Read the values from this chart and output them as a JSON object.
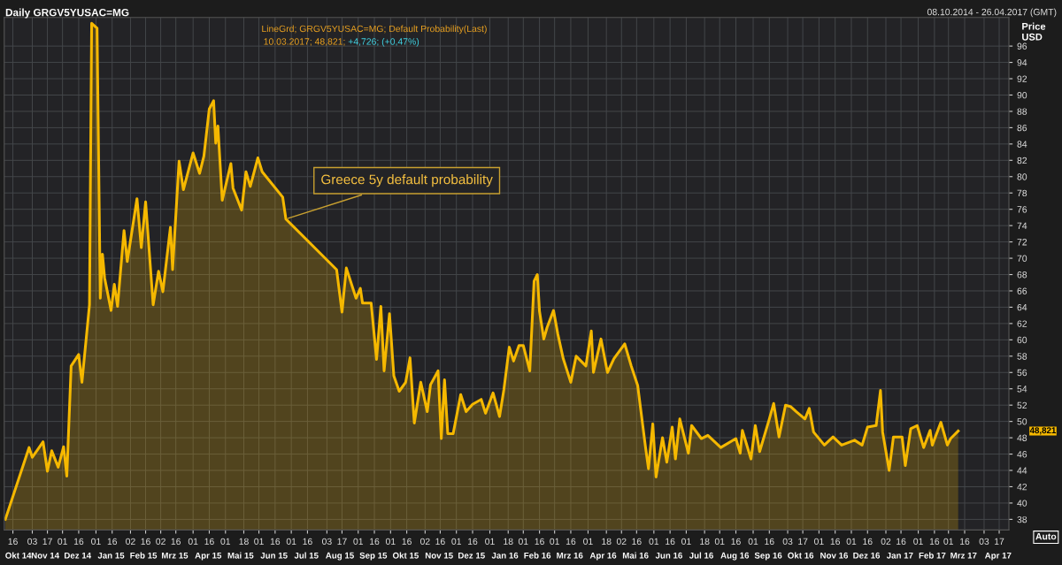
{
  "chart_data": {
    "type": "area",
    "title": "Daily GRGV5YUSAC=MG",
    "ylabel": "Price USD",
    "annotations": [
      "08.10.2014 - 26.04.2017 (GMT)",
      "LineGrd; GRGV5YUSAC=MG; Default Probability(Last)",
      "10.03.2017; 48,821;",
      "+4,726; (+0,47%)",
      "48,821",
      "Auto",
      {
        "text": "Greece 5y default probability",
        "x": "2015-06-26",
        "y": 74.8
      }
    ],
    "x": [
      "2014-10-09",
      "2014-10-31",
      "2014-11-03",
      "2014-11-13",
      "2014-11-17",
      "2014-11-21",
      "2014-11-27",
      "2014-12-02",
      "2014-12-05",
      "2014-12-09",
      "2014-12-16",
      "2014-12-19",
      "2014-12-26",
      "2014-12-28",
      "2015-01-02",
      "2015-01-05",
      "2015-01-07",
      "2015-01-09",
      "2015-01-15",
      "2015-01-18",
      "2015-01-21",
      "2015-01-27",
      "2015-01-30",
      "2015-02-08",
      "2015-02-12",
      "2015-02-16",
      "2015-02-23",
      "2015-02-28",
      "2015-03-04",
      "2015-03-11",
      "2015-03-13",
      "2015-03-19",
      "2015-03-23",
      "2015-04-01",
      "2015-04-07",
      "2015-04-11",
      "2015-04-16",
      "2015-04-20",
      "2015-04-22",
      "2015-04-24",
      "2015-04-28",
      "2015-05-06",
      "2015-05-08",
      "2015-05-16",
      "2015-05-20",
      "2015-05-24",
      "2015-05-31",
      "2015-06-04",
      "2015-06-23",
      "2015-06-26",
      "2015-08-12",
      "2015-08-17",
      "2015-08-21",
      "2015-08-30",
      "2015-09-03",
      "2015-09-05",
      "2015-09-13",
      "2015-09-18",
      "2015-09-22",
      "2015-09-25",
      "2015-09-30",
      "2015-10-04",
      "2015-10-09",
      "2015-10-15",
      "2015-10-19",
      "2015-10-23",
      "2015-10-29",
      "2015-11-04",
      "2015-11-07",
      "2015-11-14",
      "2015-11-17",
      "2015-11-20",
      "2015-11-23",
      "2015-11-28",
      "2015-12-05",
      "2015-12-10",
      "2015-12-16",
      "2015-12-24",
      "2015-12-28",
      "2016-01-04",
      "2016-01-10",
      "2016-01-14",
      "2016-01-19",
      "2016-01-23",
      "2016-01-28",
      "2016-02-01",
      "2016-02-07",
      "2016-02-11",
      "2016-02-14",
      "2016-02-16",
      "2016-02-20",
      "2016-02-23",
      "2016-02-29",
      "2016-03-04",
      "2016-03-09",
      "2016-03-16",
      "2016-03-21",
      "2016-03-30",
      "2016-04-04",
      "2016-04-06",
      "2016-04-13",
      "2016-04-19",
      "2016-04-25",
      "2016-05-05",
      "2016-05-11",
      "2016-05-17",
      "2016-05-24",
      "2016-05-27",
      "2016-05-31",
      "2016-06-03",
      "2016-06-09",
      "2016-06-13",
      "2016-06-18",
      "2016-06-21",
      "2016-06-25",
      "2016-07-03",
      "2016-07-06",
      "2016-07-15",
      "2016-07-21",
      "2016-08-02",
      "2016-08-16",
      "2016-08-20",
      "2016-08-22",
      "2016-08-30",
      "2016-09-03",
      "2016-09-07",
      "2016-09-16",
      "2016-09-20",
      "2016-09-25",
      "2016-10-01",
      "2016-10-06",
      "2016-10-11",
      "2016-10-19",
      "2016-10-23",
      "2016-10-27",
      "2016-11-06",
      "2016-11-14",
      "2016-11-22",
      "2016-12-04",
      "2016-12-11",
      "2016-12-16",
      "2016-12-24",
      "2016-12-28",
      "2016-12-30",
      "2017-01-05",
      "2017-01-09",
      "2017-01-17",
      "2017-01-20",
      "2017-01-25",
      "2017-01-31",
      "2017-02-06",
      "2017-02-12",
      "2017-02-14",
      "2017-02-22",
      "2017-02-28",
      "2017-03-03",
      "2017-03-10"
    ],
    "series": [
      {
        "color": "#f5b800",
        "values": [
          38.0,
          46.8,
          45.6,
          47.5,
          43.9,
          46.4,
          44.4,
          46.9,
          43.3,
          56.8,
          58.2,
          54.8,
          64.3,
          98.8,
          98.2,
          65.1,
          70.5,
          67.6,
          63.6,
          66.8,
          64.1,
          73.4,
          69.6,
          77.3,
          71.3,
          76.9,
          64.3,
          68.4,
          65.9,
          73.8,
          68.6,
          81.9,
          78.4,
          82.9,
          80.4,
          82.5,
          88.3,
          89.3,
          84.1,
          86.2,
          77.1,
          81.6,
          78.6,
          75.9,
          80.6,
          78.8,
          82.3,
          80.6,
          77.5,
          74.8,
          68.6,
          63.4,
          68.8,
          65.1,
          66.3,
          64.5,
          64.5,
          57.6,
          64.1,
          56.2,
          63.2,
          55.6,
          53.7,
          54.8,
          57.8,
          49.8,
          54.8,
          51.2,
          54.5,
          56.2,
          47.9,
          55.1,
          48.5,
          48.5,
          53.3,
          51.2,
          52.1,
          52.7,
          51.0,
          53.5,
          50.6,
          53.9,
          59.1,
          57.4,
          59.3,
          59.3,
          56.2,
          67.2,
          68.0,
          63.5,
          60.1,
          61.5,
          63.6,
          60.7,
          57.7,
          54.8,
          58.0,
          56.8,
          61.1,
          56.0,
          60.1,
          56.0,
          57.7,
          59.5,
          56.8,
          54.4,
          47.1,
          44.2,
          49.7,
          43.2,
          48.0,
          45.0,
          49.3,
          45.4,
          50.3,
          46.1,
          49.5,
          47.9,
          48.3,
          46.8,
          47.9,
          46.1,
          48.9,
          45.4,
          49.5,
          46.3,
          50.3,
          52.2,
          48.1,
          52.0,
          51.8,
          51.2,
          50.3,
          51.6,
          48.7,
          47.1,
          48.1,
          47.1,
          47.7,
          47.1,
          49.3,
          49.5,
          53.8,
          48.7,
          44.0,
          48.1,
          48.1,
          44.6,
          49.1,
          49.5,
          46.8,
          48.9,
          47.1,
          49.9,
          47.1,
          47.9,
          48.821
        ]
      }
    ],
    "xlim": [
      "2014-10-08",
      "2017-04-26"
    ],
    "ylim": [
      36.7,
      99.5
    ],
    "yticks": [
      38,
      40,
      42,
      44,
      46,
      48,
      50,
      52,
      54,
      56,
      58,
      60,
      62,
      64,
      66,
      68,
      70,
      72,
      74,
      76,
      78,
      80,
      82,
      84,
      86,
      88,
      90,
      92,
      94,
      96
    ],
    "xticks": [
      {
        "value": "2014-10-16",
        "label": "16"
      },
      {
        "value": "2014-11-03",
        "label": "03"
      },
      {
        "value": "2014-11-17",
        "label": "17"
      },
      {
        "value": "2014-12-01",
        "label": "01"
      },
      {
        "value": "2014-12-16",
        "label": "16"
      },
      {
        "value": "2015-01-01",
        "label": "01"
      },
      {
        "value": "2015-01-16",
        "label": "16"
      },
      {
        "value": "2015-02-02",
        "label": "02"
      },
      {
        "value": "2015-02-16",
        "label": "16"
      },
      {
        "value": "2015-03-02",
        "label": "02"
      },
      {
        "value": "2015-03-16",
        "label": "16"
      },
      {
        "value": "2015-04-01",
        "label": "01"
      },
      {
        "value": "2015-04-16",
        "label": "16"
      },
      {
        "value": "2015-05-01",
        "label": "01"
      },
      {
        "value": "2015-05-18",
        "label": "18"
      },
      {
        "value": "2015-06-01",
        "label": "01"
      },
      {
        "value": "2015-06-16",
        "label": "16"
      },
      {
        "value": "2015-07-01",
        "label": "01"
      },
      {
        "value": "2015-07-16",
        "label": "16"
      },
      {
        "value": "2015-08-03",
        "label": "03"
      },
      {
        "value": "2015-08-17",
        "label": "17"
      },
      {
        "value": "2015-09-01",
        "label": "01"
      },
      {
        "value": "2015-09-16",
        "label": "16"
      },
      {
        "value": "2015-10-01",
        "label": "01"
      },
      {
        "value": "2015-10-16",
        "label": "16"
      },
      {
        "value": "2015-11-02",
        "label": "02"
      },
      {
        "value": "2015-11-16",
        "label": "16"
      },
      {
        "value": "2015-12-01",
        "label": "01"
      },
      {
        "value": "2015-12-16",
        "label": "16"
      },
      {
        "value": "2016-01-01",
        "label": "01"
      },
      {
        "value": "2016-01-18",
        "label": "18"
      },
      {
        "value": "2016-02-01",
        "label": "01"
      },
      {
        "value": "2016-02-16",
        "label": "16"
      },
      {
        "value": "2016-03-01",
        "label": "01"
      },
      {
        "value": "2016-03-16",
        "label": "16"
      },
      {
        "value": "2016-04-01",
        "label": "01"
      },
      {
        "value": "2016-04-18",
        "label": "18"
      },
      {
        "value": "2016-05-02",
        "label": "02"
      },
      {
        "value": "2016-05-16",
        "label": "16"
      },
      {
        "value": "2016-06-01",
        "label": "01"
      },
      {
        "value": "2016-06-16",
        "label": "16"
      },
      {
        "value": "2016-07-01",
        "label": "01"
      },
      {
        "value": "2016-07-18",
        "label": "18"
      },
      {
        "value": "2016-08-01",
        "label": "01"
      },
      {
        "value": "2016-08-16",
        "label": "16"
      },
      {
        "value": "2016-09-01",
        "label": "01"
      },
      {
        "value": "2016-09-16",
        "label": "16"
      },
      {
        "value": "2016-10-03",
        "label": "03"
      },
      {
        "value": "2016-10-17",
        "label": "17"
      },
      {
        "value": "2016-11-01",
        "label": "01"
      },
      {
        "value": "2016-11-16",
        "label": "16"
      },
      {
        "value": "2016-12-01",
        "label": "01"
      },
      {
        "value": "2016-12-16",
        "label": "16"
      },
      {
        "value": "2017-01-02",
        "label": "02"
      },
      {
        "value": "2017-01-16",
        "label": "16"
      },
      {
        "value": "2017-02-01",
        "label": "01"
      },
      {
        "value": "2017-02-16",
        "label": "16"
      },
      {
        "value": "2017-03-01",
        "label": "01"
      },
      {
        "value": "2017-03-16",
        "label": "16"
      },
      {
        "value": "2017-04-03",
        "label": "03"
      },
      {
        "value": "2017-04-17",
        "label": "17"
      }
    ],
    "x2lim": [
      "2014-10-08",
      "2017-04-26"
    ],
    "x2ticks": [
      {
        "value": "2014-10-21",
        "label": "Okt 14"
      },
      {
        "value": "2014-11-15",
        "label": "Nov 14"
      },
      {
        "value": "2014-12-15",
        "label": "Dez 14"
      },
      {
        "value": "2015-01-15",
        "label": "Jan 15"
      },
      {
        "value": "2015-02-14",
        "label": "Feb 15"
      },
      {
        "value": "2015-03-15",
        "label": "Mrz 15"
      },
      {
        "value": "2015-04-15",
        "label": "Apr 15"
      },
      {
        "value": "2015-05-15",
        "label": "Mai 15"
      },
      {
        "value": "2015-06-15",
        "label": "Jun 15"
      },
      {
        "value": "2015-07-15",
        "label": "Jul 15"
      },
      {
        "value": "2015-08-15",
        "label": "Aug 15"
      },
      {
        "value": "2015-09-15",
        "label": "Sep 15"
      },
      {
        "value": "2015-10-15",
        "label": "Okt 15"
      },
      {
        "value": "2015-11-15",
        "label": "Nov 15"
      },
      {
        "value": "2015-12-15",
        "label": "Dez 15"
      },
      {
        "value": "2016-01-15",
        "label": "Jan 16"
      },
      {
        "value": "2016-02-14",
        "label": "Feb 16"
      },
      {
        "value": "2016-03-15",
        "label": "Mrz 16"
      },
      {
        "value": "2016-04-15",
        "label": "Apr 16"
      },
      {
        "value": "2016-05-15",
        "label": "Mai 16"
      },
      {
        "value": "2016-06-15",
        "label": "Jun 16"
      },
      {
        "value": "2016-07-15",
        "label": "Jul 16"
      },
      {
        "value": "2016-08-15",
        "label": "Aug 16"
      },
      {
        "value": "2016-09-15",
        "label": "Sep 16"
      },
      {
        "value": "2016-10-15",
        "label": "Okt 16"
      },
      {
        "value": "2016-11-15",
        "label": "Nov 16"
      },
      {
        "value": "2016-12-15",
        "label": "Dez 16"
      },
      {
        "value": "2017-01-15",
        "label": "Jan 17"
      },
      {
        "value": "2017-02-14",
        "label": "Feb 17"
      },
      {
        "value": "2017-03-15",
        "label": "Mrz 17"
      },
      {
        "value": "2017-04-16",
        "label": "Apr 17"
      }
    ],
    "grid": true
  }
}
